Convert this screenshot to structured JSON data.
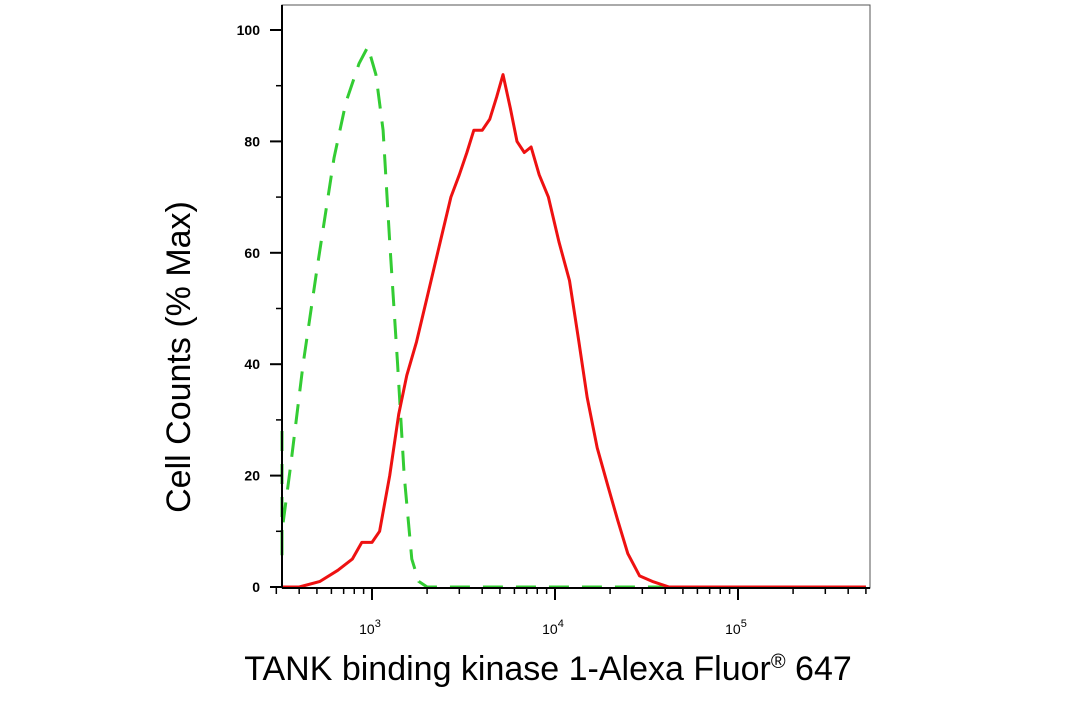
{
  "chart_data": {
    "type": "line",
    "title": "",
    "xlabel": "TANK binding kinase 1-Alexa Fluor",
    "xlabel_superscript": "®",
    "xlabel_suffix": " 647",
    "ylabel": "Cell Counts (% Max)",
    "xscale": "log",
    "xlim": [
      260,
      500000
    ],
    "ylim": [
      0,
      105
    ],
    "x_ticks": [
      {
        "value": 1000,
        "base": "10",
        "exp": "3"
      },
      {
        "value": 10000,
        "base": "10",
        "exp": "4"
      },
      {
        "value": 100000,
        "base": "10",
        "exp": "5"
      }
    ],
    "y_ticks": [
      0,
      20,
      40,
      60,
      80,
      100
    ],
    "grid": false,
    "legend": "none",
    "series": [
      {
        "color": "#33cc33",
        "dash": "dashed",
        "points": [
          [
            260,
            28
          ],
          [
            285,
            5
          ],
          [
            320,
            10
          ],
          [
            360,
            22
          ],
          [
            420,
            40
          ],
          [
            500,
            57
          ],
          [
            620,
            77
          ],
          [
            720,
            87
          ],
          [
            850,
            94
          ],
          [
            950,
            97
          ],
          [
            1050,
            92
          ],
          [
            1150,
            82
          ],
          [
            1250,
            62
          ],
          [
            1380,
            40
          ],
          [
            1500,
            20
          ],
          [
            1650,
            5
          ],
          [
            1800,
            1
          ],
          [
            2000,
            0
          ],
          [
            500000,
            0
          ]
        ]
      },
      {
        "color": "#ee1111",
        "dash": "solid",
        "points": [
          [
            260,
            0
          ],
          [
            400,
            0
          ],
          [
            520,
            1
          ],
          [
            650,
            3
          ],
          [
            780,
            5
          ],
          [
            880,
            8
          ],
          [
            1000,
            8
          ],
          [
            1100,
            10
          ],
          [
            1250,
            20
          ],
          [
            1400,
            31
          ],
          [
            1550,
            38
          ],
          [
            1750,
            44
          ],
          [
            2000,
            52
          ],
          [
            2400,
            63
          ],
          [
            2700,
            70
          ],
          [
            3000,
            74
          ],
          [
            3300,
            78
          ],
          [
            3600,
            82
          ],
          [
            4000,
            82
          ],
          [
            4400,
            84
          ],
          [
            4800,
            88
          ],
          [
            5200,
            92
          ],
          [
            5700,
            86
          ],
          [
            6200,
            80
          ],
          [
            6800,
            78
          ],
          [
            7400,
            79
          ],
          [
            8200,
            74
          ],
          [
            9200,
            70
          ],
          [
            10500,
            62
          ],
          [
            12000,
            55
          ],
          [
            13500,
            44
          ],
          [
            15000,
            34
          ],
          [
            17000,
            25
          ],
          [
            19500,
            18
          ],
          [
            22000,
            12
          ],
          [
            25000,
            6
          ],
          [
            29000,
            2
          ],
          [
            34000,
            1
          ],
          [
            42000,
            0
          ],
          [
            500000,
            0
          ]
        ]
      }
    ]
  }
}
